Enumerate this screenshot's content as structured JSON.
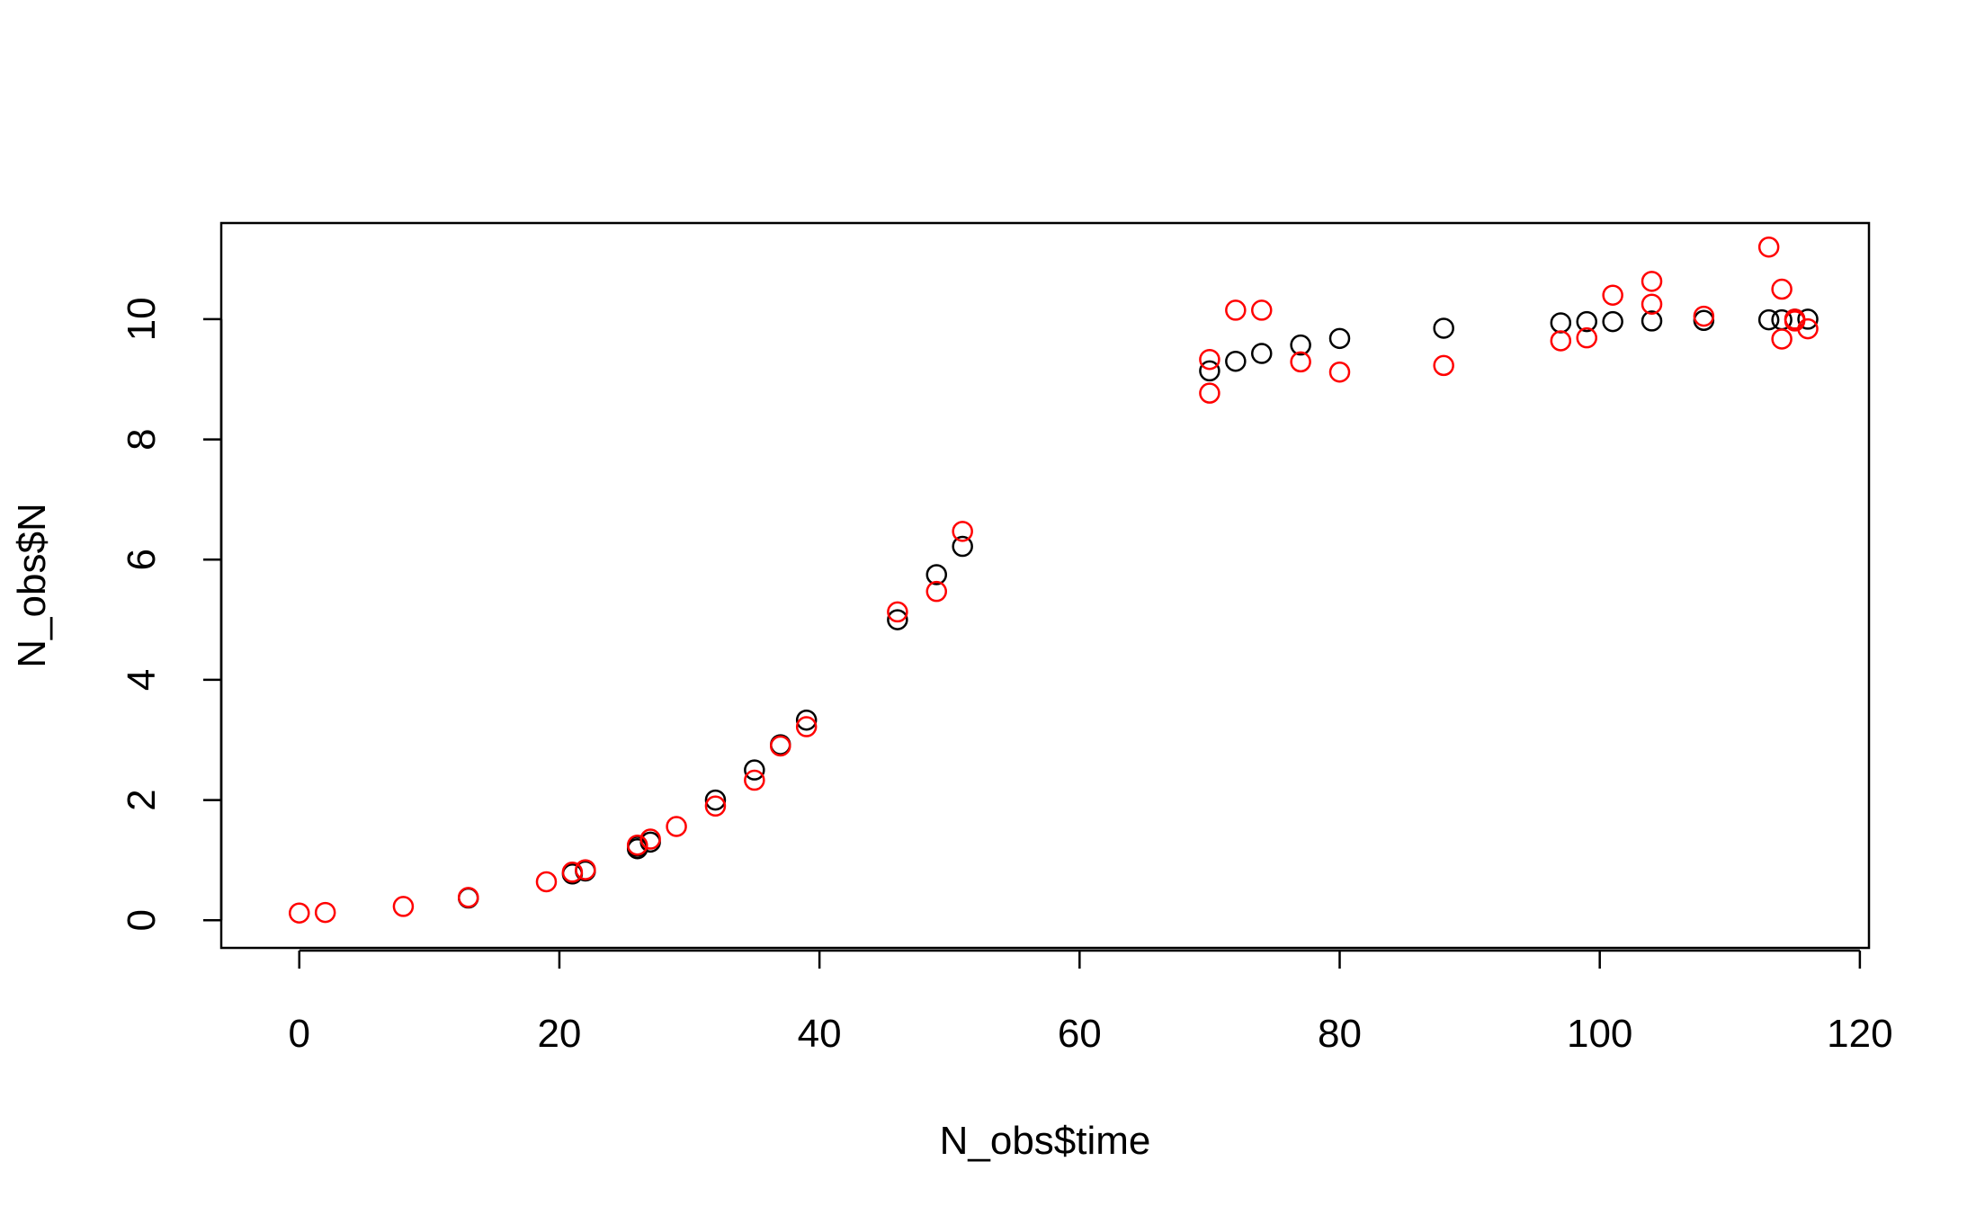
{
  "chart_data": {
    "type": "scatter",
    "title": "",
    "xlabel": "N_obs$time",
    "ylabel": "N_obs$N",
    "xlim": [
      -6,
      120.7
    ],
    "ylim": [
      -0.46,
      11.6
    ],
    "xticks": [
      0,
      20,
      40,
      60,
      80,
      100,
      120
    ],
    "yticks": [
      0,
      2,
      4,
      6,
      8,
      10
    ],
    "grid": false,
    "legend": "none",
    "series": [
      {
        "color": "#000000",
        "marker": "open-circle",
        "points": [
          [
            13,
            0.37
          ],
          [
            21,
            0.77
          ],
          [
            22,
            0.82
          ],
          [
            26,
            1.19
          ],
          [
            26,
            1.23
          ],
          [
            27,
            1.3
          ],
          [
            32,
            2.0
          ],
          [
            35,
            2.5
          ],
          [
            37,
            2.92
          ],
          [
            39,
            3.33
          ],
          [
            46,
            5.0
          ],
          [
            49,
            5.75
          ],
          [
            51,
            6.22
          ],
          [
            70,
            9.14
          ],
          [
            72,
            9.3
          ],
          [
            74,
            9.43
          ],
          [
            77,
            9.57
          ],
          [
            80,
            9.68
          ],
          [
            88,
            9.85
          ],
          [
            97,
            9.94
          ],
          [
            99,
            9.96
          ],
          [
            101,
            9.96
          ],
          [
            104,
            9.97
          ],
          [
            108,
            9.98
          ],
          [
            113,
            9.99
          ],
          [
            114,
            9.99
          ],
          [
            115,
            10.0
          ],
          [
            116,
            10.0
          ]
        ]
      },
      {
        "color": "#ff0000",
        "marker": "open-circle",
        "points": [
          [
            0,
            0.12
          ],
          [
            2,
            0.13
          ],
          [
            8,
            0.23
          ],
          [
            13,
            0.38
          ],
          [
            19,
            0.64
          ],
          [
            21,
            0.8
          ],
          [
            22,
            0.84
          ],
          [
            26,
            1.25
          ],
          [
            27,
            1.35
          ],
          [
            29,
            1.56
          ],
          [
            32,
            1.9
          ],
          [
            35,
            2.33
          ],
          [
            37,
            2.9
          ],
          [
            39,
            3.22
          ],
          [
            46,
            5.13
          ],
          [
            49,
            5.47
          ],
          [
            51,
            6.47
          ],
          [
            70,
            9.33
          ],
          [
            70,
            8.77
          ],
          [
            72,
            10.15
          ],
          [
            74,
            10.15
          ],
          [
            77,
            9.29
          ],
          [
            80,
            9.12
          ],
          [
            88,
            9.23
          ],
          [
            97,
            9.64
          ],
          [
            99,
            9.69
          ],
          [
            101,
            10.4
          ],
          [
            104,
            10.63
          ],
          [
            104,
            10.25
          ],
          [
            108,
            10.05
          ],
          [
            113,
            11.2
          ],
          [
            114,
            10.5
          ],
          [
            114,
            9.67
          ],
          [
            115,
            10.0
          ],
          [
            115,
            9.97
          ],
          [
            116,
            9.84
          ]
        ]
      }
    ]
  }
}
